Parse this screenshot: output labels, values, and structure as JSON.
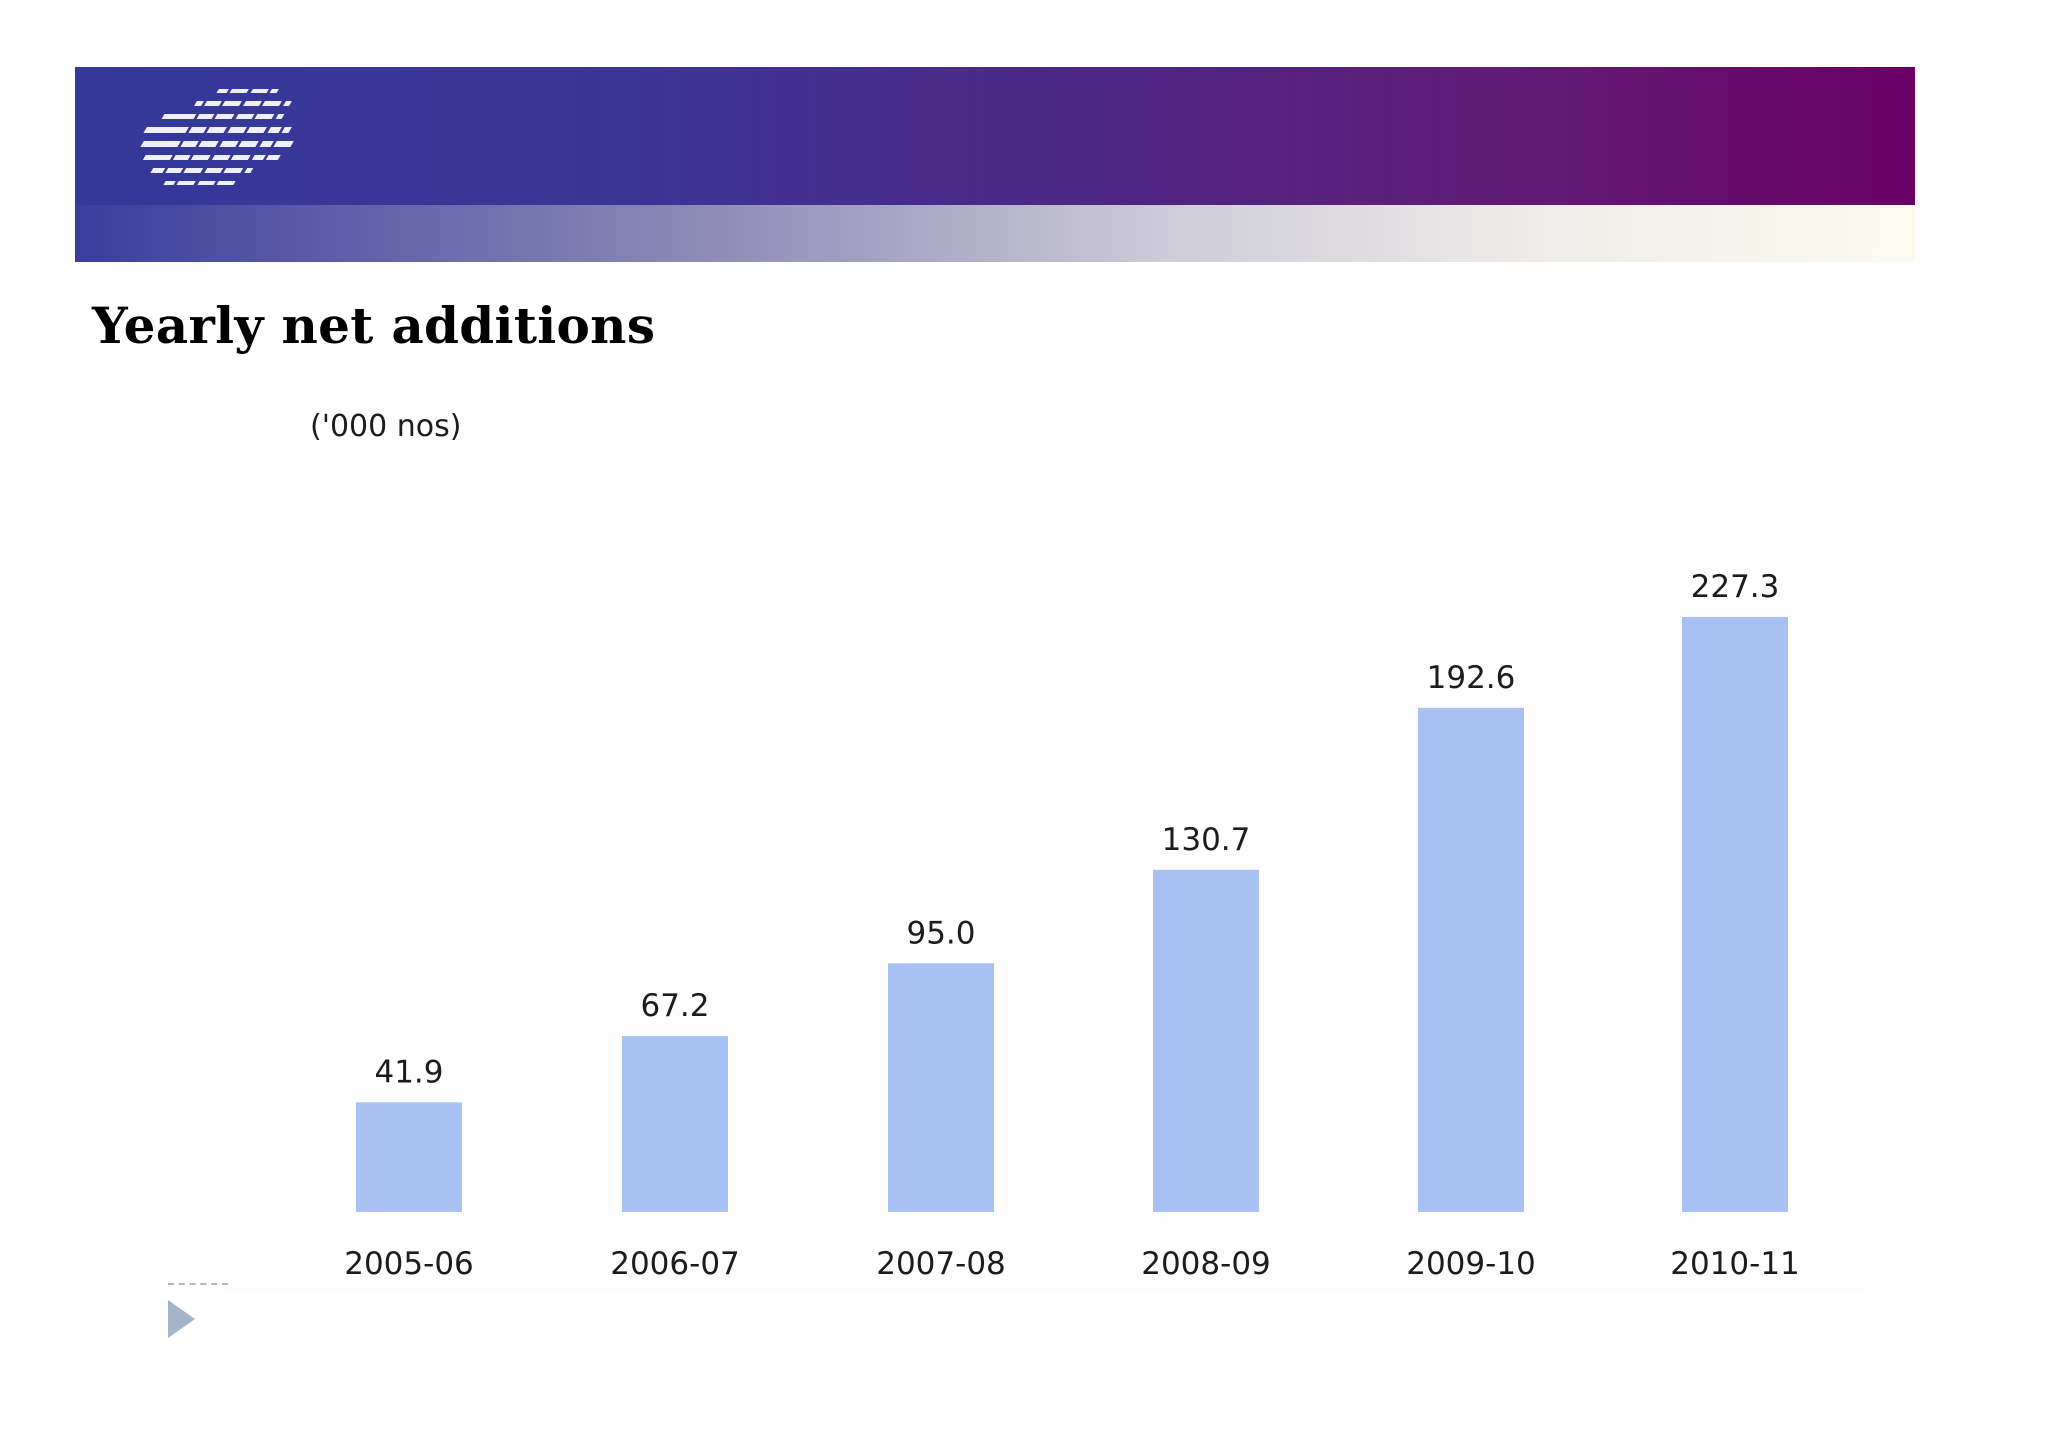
{
  "slide": {
    "title": "Yearly net additions"
  },
  "colors": {
    "bar": "#a9c0f3",
    "banner_start": "#35399a",
    "banner_end": "#6b0064"
  },
  "icons": {
    "logo": "striped-logo-icon",
    "bullet": "triangle-bullet-icon"
  },
  "chart_data": {
    "type": "bar",
    "unit_label": "('000 nos)",
    "categories": [
      "2005-06",
      "2006-07",
      "2007-08",
      "2008-09",
      "2009-10",
      "2010-11"
    ],
    "values": [
      41.9,
      67.2,
      95.0,
      130.7,
      192.6,
      227.3
    ],
    "value_labels": [
      "41.9",
      "67.2",
      "95.0",
      "130.7",
      "192.6",
      "227.3"
    ],
    "ylim": [
      0,
      240
    ],
    "grid": false,
    "legend": "none"
  }
}
